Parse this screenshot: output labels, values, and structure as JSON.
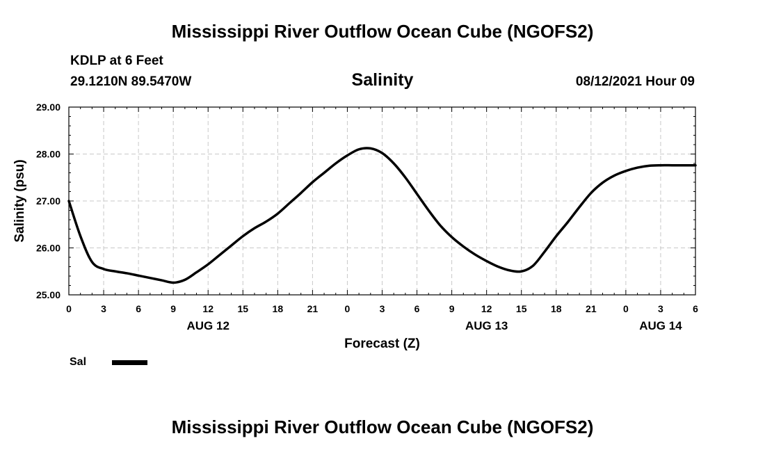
{
  "header": {
    "title": "Mississippi River Outflow Ocean Cube (NGOFS2)",
    "station": "KDLP at 6 Feet",
    "coords": "29.1210N  89.5470W",
    "parameter": "Salinity",
    "datetime": "08/12/2021 Hour 09"
  },
  "footer": {
    "title": "Mississippi River Outflow Ocean Cube (NGOFS2)"
  },
  "chart_data": {
    "type": "line",
    "xlabel": "Forecast (Z)",
    "ylabel": "Salinity (psu)",
    "xlim": [
      0,
      54
    ],
    "ylim": [
      25,
      29
    ],
    "grid": true,
    "x_ticks": [
      0,
      3,
      6,
      9,
      12,
      15,
      18,
      21,
      24,
      27,
      30,
      33,
      36,
      39,
      42,
      45,
      48,
      51,
      54
    ],
    "x_tick_labels": [
      "0",
      "3",
      "6",
      "9",
      "12",
      "15",
      "18",
      "21",
      "0",
      "3",
      "6",
      "9",
      "12",
      "15",
      "18",
      "21",
      "0",
      "3",
      "6"
    ],
    "y_ticks": [
      25,
      26,
      27,
      28,
      29
    ],
    "y_tick_labels": [
      "25.00",
      "26.00",
      "27.00",
      "28.00",
      "29.00"
    ],
    "date_labels": [
      {
        "x": 12,
        "label": "AUG 12"
      },
      {
        "x": 36,
        "label": "AUG 13"
      },
      {
        "x": 51,
        "label": "AUG 14"
      }
    ],
    "legend": {
      "placement": "bottom-left",
      "entries": [
        "Sal"
      ]
    },
    "series": [
      {
        "name": "Sal",
        "color": "#000000",
        "x": [
          0,
          1,
          2,
          3,
          4,
          5,
          6,
          7,
          8,
          9,
          10,
          11,
          12,
          13,
          14,
          15,
          16,
          17,
          18,
          19,
          20,
          21,
          22,
          23,
          24,
          25,
          26,
          27,
          28,
          29,
          30,
          31,
          32,
          33,
          34,
          35,
          36,
          37,
          38,
          39,
          40,
          41,
          42,
          43,
          44,
          45,
          46,
          47,
          48,
          49,
          50,
          51,
          52,
          53,
          54
        ],
        "y": [
          27.0,
          26.25,
          25.7,
          25.55,
          25.5,
          25.46,
          25.41,
          25.36,
          25.31,
          25.26,
          25.32,
          25.48,
          25.65,
          25.85,
          26.05,
          26.25,
          26.42,
          26.56,
          26.73,
          26.95,
          27.17,
          27.4,
          27.6,
          27.8,
          27.97,
          28.1,
          28.12,
          28.02,
          27.8,
          27.5,
          27.15,
          26.8,
          26.48,
          26.23,
          26.03,
          25.86,
          25.72,
          25.6,
          25.52,
          25.5,
          25.62,
          25.92,
          26.25,
          26.55,
          26.87,
          27.17,
          27.39,
          27.54,
          27.64,
          27.71,
          27.75,
          27.76,
          27.76,
          27.76,
          27.76
        ]
      }
    ]
  }
}
